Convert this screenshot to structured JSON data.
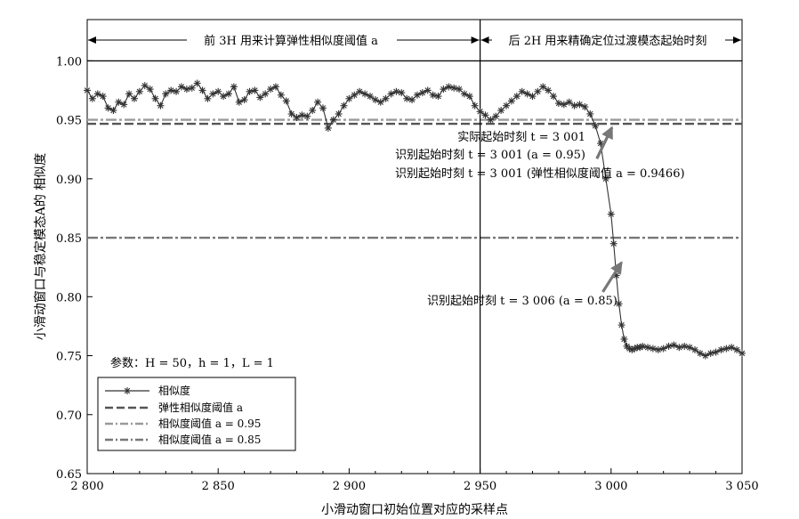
{
  "chart_data": {
    "type": "line",
    "xlabel": "小滑动窗口初始位置对应的采样点",
    "ylabel": "小滑动窗口与稳定模态A的 相似度",
    "xlim": [
      2800,
      3050
    ],
    "ylim": [
      0.65,
      1.0
    ],
    "x_ticks": [
      2800,
      2850,
      2900,
      2950,
      3000,
      3050
    ],
    "x_tick_labels": [
      "2 800",
      "2 850",
      "2 900",
      "2 950",
      "3 000",
      "3 050"
    ],
    "y_ticks": [
      0.65,
      0.7,
      0.75,
      0.8,
      0.85,
      0.9,
      0.95,
      1.0
    ],
    "y_tick_labels": [
      "0.65",
      "0.70",
      "0.75",
      "0.80",
      "0.85",
      "0.90",
      "0.95",
      "1.00"
    ],
    "grid": false,
    "series": [
      {
        "name": "相似度",
        "style": "solid-star",
        "color": "#333333",
        "x": [
          2800,
          2802,
          2804,
          2806,
          2808,
          2810,
          2812,
          2814,
          2816,
          2818,
          2820,
          2822,
          2824,
          2826,
          2828,
          2830,
          2832,
          2834,
          2836,
          2838,
          2840,
          2842,
          2844,
          2846,
          2848,
          2850,
          2852,
          2854,
          2856,
          2858,
          2860,
          2862,
          2864,
          2866,
          2868,
          2870,
          2872,
          2874,
          2876,
          2878,
          2880,
          2882,
          2884,
          2886,
          2888,
          2890,
          2892,
          2894,
          2896,
          2898,
          2900,
          2902,
          2904,
          2906,
          2908,
          2910,
          2912,
          2914,
          2916,
          2918,
          2920,
          2922,
          2924,
          2926,
          2928,
          2930,
          2932,
          2934,
          2936,
          2938,
          2940,
          2942,
          2944,
          2946,
          2948,
          2950,
          2952,
          2954,
          2956,
          2958,
          2960,
          2962,
          2964,
          2966,
          2968,
          2970,
          2972,
          2974,
          2976,
          2978,
          2980,
          2982,
          2984,
          2986,
          2988,
          2990,
          2992,
          2994,
          2996,
          2998,
          3000,
          3001,
          3002,
          3003,
          3004,
          3005,
          3006,
          3007,
          3008,
          3009,
          3010,
          3011,
          3012,
          3014,
          3016,
          3018,
          3020,
          3022,
          3024,
          3026,
          3028,
          3030,
          3032,
          3034,
          3036,
          3038,
          3040,
          3042,
          3044,
          3046,
          3048,
          3050
        ],
        "y": [
          0.975,
          0.968,
          0.972,
          0.97,
          0.96,
          0.958,
          0.965,
          0.963,
          0.972,
          0.968,
          0.974,
          0.979,
          0.976,
          0.968,
          0.962,
          0.972,
          0.975,
          0.974,
          0.978,
          0.976,
          0.977,
          0.981,
          0.975,
          0.968,
          0.972,
          0.974,
          0.97,
          0.972,
          0.978,
          0.965,
          0.967,
          0.974,
          0.975,
          0.969,
          0.972,
          0.976,
          0.978,
          0.971,
          0.966,
          0.955,
          0.952,
          0.954,
          0.953,
          0.958,
          0.965,
          0.96,
          0.943,
          0.95,
          0.955,
          0.962,
          0.968,
          0.971,
          0.974,
          0.972,
          0.97,
          0.967,
          0.965,
          0.968,
          0.972,
          0.974,
          0.973,
          0.968,
          0.967,
          0.971,
          0.973,
          0.975,
          0.971,
          0.97,
          0.976,
          0.978,
          0.977,
          0.976,
          0.972,
          0.97,
          0.962,
          0.957,
          0.954,
          0.95,
          0.953,
          0.958,
          0.962,
          0.966,
          0.97,
          0.974,
          0.972,
          0.97,
          0.974,
          0.978,
          0.975,
          0.97,
          0.964,
          0.963,
          0.965,
          0.962,
          0.963,
          0.961,
          0.955,
          0.945,
          0.93,
          0.9,
          0.87,
          0.845,
          0.818,
          0.794,
          0.776,
          0.764,
          0.758,
          0.756,
          0.755,
          0.756,
          0.757,
          0.757,
          0.758,
          0.757,
          0.756,
          0.755,
          0.756,
          0.758,
          0.759,
          0.757,
          0.758,
          0.757,
          0.755,
          0.752,
          0.75,
          0.752,
          0.753,
          0.755,
          0.756,
          0.757,
          0.755,
          0.752
        ]
      },
      {
        "name": "弹性相似度阈值 a",
        "style": "dashed",
        "color": "#555555",
        "value": 0.9466
      },
      {
        "name": "相似度阈值 a = 0.95",
        "style": "dash-dot-light",
        "color": "#9a9a9a",
        "value": 0.95
      },
      {
        "name": "相似度阈值 a = 0.85",
        "style": "dash-dot-dark",
        "color": "#777777",
        "value": 0.85
      }
    ],
    "reference_lines": {
      "horizontal_at": 1.0,
      "vertical_at": 2950
    },
    "spans": [
      {
        "label": "前 3H 用来计算弹性相似度阈值 a",
        "from": 2800,
        "to": 2950
      },
      {
        "label": "后 2H 用来精确定位过渡模态起始时刻",
        "from": 2950,
        "to": 3050
      }
    ],
    "annotations": [
      {
        "text": "实际起始时刻 t = 3 001",
        "x": 3001
      },
      {
        "text": "识别起始时刻 t = 3 001 (a = 0.95)",
        "x": 3001
      },
      {
        "text": "识别起始时刻 t = 3 001 (弹性相似度阈值 a = 0.9466)",
        "x": 3001
      },
      {
        "text": "识别起始时刻 t = 3 006 (a = 0.85)",
        "x": 3006
      }
    ],
    "params_text": "参数：H = 50，h = 1，L = 1",
    "legend_position": "bottom-left"
  }
}
